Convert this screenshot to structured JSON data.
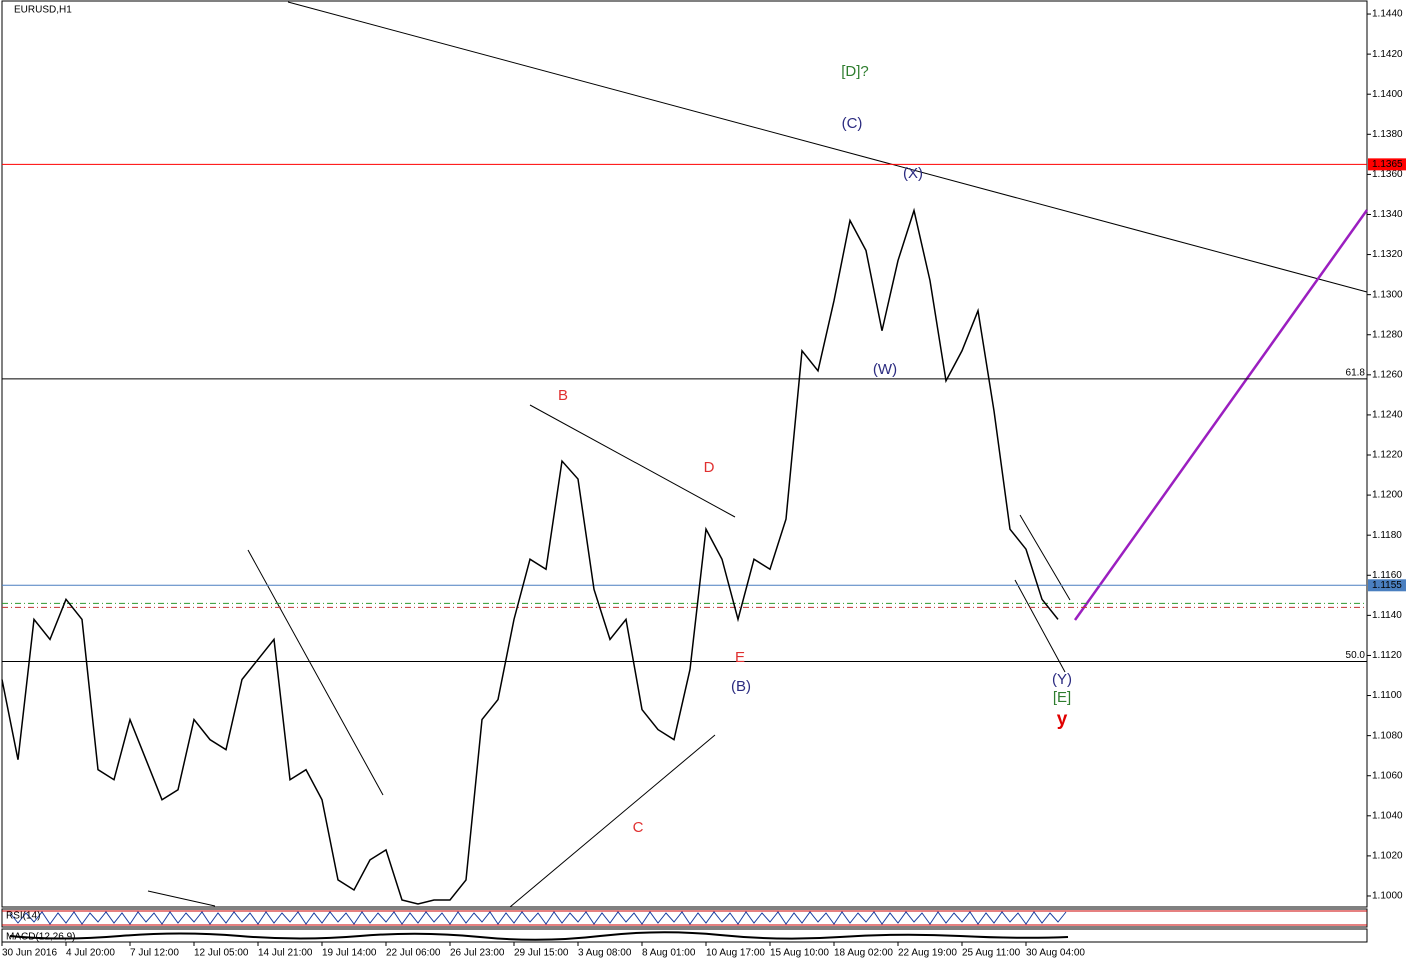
{
  "chart_data": {
    "type": "line",
    "title": "EURUSD,H1",
    "categories": [
      "30 Jun 2016",
      null,
      null,
      null,
      "4 Jul 20:00",
      null,
      null,
      null,
      "7 Jul 12:00",
      null,
      null,
      null,
      "12 Jul 05:00",
      null,
      null,
      null,
      "14 Jul 21:00",
      null,
      null,
      null,
      "19 Jul 14:00",
      null,
      null,
      null,
      "22 Jul 06:00",
      null,
      null,
      null,
      "26 Jul 23:00",
      null,
      null,
      null,
      "29 Jul 15:00",
      null,
      null,
      null,
      "3 Aug 08:00",
      null,
      null,
      null,
      "8 Aug 01:00",
      null,
      null,
      null,
      "10 Aug 17:00",
      null,
      null,
      null,
      "15 Aug 10:00",
      null,
      null,
      null,
      "18 Aug 02:00",
      null,
      null,
      null,
      "22 Aug 19:00",
      null,
      null,
      null,
      "25 Aug 11:00",
      null,
      null,
      null,
      "30 Aug 04:00",
      null,
      null
    ],
    "values": [
      1.1108,
      1.1068,
      1.1138,
      1.1128,
      1.1148,
      1.1138,
      1.1063,
      1.1058,
      1.1088,
      1.1068,
      1.1048,
      1.1053,
      1.1088,
      1.1078,
      1.1073,
      1.1108,
      1.1118,
      1.1128,
      1.1058,
      1.1063,
      1.1048,
      1.1008,
      1.1003,
      1.1018,
      1.1023,
      1.0998,
      1.0996,
      1.0998,
      1.0998,
      1.1008,
      1.1088,
      1.1098,
      1.1138,
      1.1168,
      1.1163,
      1.1217,
      1.1208,
      1.1153,
      1.1128,
      1.1138,
      1.1093,
      1.1083,
      1.1078,
      1.1113,
      1.1183,
      1.1168,
      1.1138,
      1.1168,
      1.1163,
      1.1188,
      1.1272,
      1.1262,
      1.1297,
      1.1337,
      1.1322,
      1.1282,
      1.1317,
      1.1342,
      1.1307,
      1.1257,
      1.1272,
      1.1292,
      1.1242,
      1.1183,
      1.1173,
      1.1148,
      1.1138
    ],
    "color": "#000000",
    "ylim": [
      1.09945,
      1.1447
    ],
    "yticks": [
      {
        "value": 1.1,
        "label": "1.1000"
      },
      {
        "value": 1.102,
        "label": "1.1020"
      },
      {
        "value": 1.104,
        "label": "1.1040"
      },
      {
        "value": 1.106,
        "label": "1.1060"
      },
      {
        "value": 1.108,
        "label": "1.1080"
      },
      {
        "value": 1.11,
        "label": "1.1100"
      },
      {
        "value": 1.112,
        "label": "1.1120"
      },
      {
        "value": 1.114,
        "label": "1.1140"
      },
      {
        "value": 1.116,
        "label": "1.1160"
      },
      {
        "value": 1.118,
        "label": "1.1180"
      },
      {
        "value": 1.12,
        "label": "1.1200"
      },
      {
        "value": 1.122,
        "label": "1.1220"
      },
      {
        "value": 1.124,
        "label": "1.1240"
      },
      {
        "value": 1.126,
        "label": "1.1260"
      },
      {
        "value": 1.128,
        "label": "1.1280"
      },
      {
        "value": 1.13,
        "label": "1.1300"
      },
      {
        "value": 1.132,
        "label": "1.1320"
      },
      {
        "value": 1.134,
        "label": "1.1340"
      },
      {
        "value": 1.136,
        "label": "1.1360"
      },
      {
        "value": 1.138,
        "label": "1.1380"
      },
      {
        "value": 1.14,
        "label": "1.1400"
      },
      {
        "value": 1.142,
        "label": "1.1420"
      },
      {
        "value": 1.144,
        "label": "1.1440"
      }
    ],
    "price_levels": [
      {
        "value": 1.1365,
        "color": "#ff0000"
      },
      {
        "value": 1.1155,
        "color": "#4a7fc0"
      }
    ],
    "fib_levels": [
      {
        "value": 1.1258,
        "label": "61.8"
      },
      {
        "value": 1.1117,
        "label": "50.0"
      }
    ],
    "dashed_levels": [
      {
        "value": 1.1146,
        "color": "#2e9a2e"
      },
      {
        "value": 1.1144,
        "color": "#c03030"
      }
    ],
    "annotations": [
      {
        "text": "[D]?",
        "color": "#2e7d2e"
      },
      {
        "text": "(C)",
        "color": "#2b2b80"
      },
      {
        "text": "(X)",
        "color": "#2b2b80"
      },
      {
        "text": "(W)",
        "color": "#2b2b80"
      },
      {
        "text": "B",
        "color": "#e03030"
      },
      {
        "text": "D",
        "color": "#e03030"
      },
      {
        "text": "E",
        "color": "#e03030"
      },
      {
        "text": "(B)",
        "color": "#2b2b80"
      },
      {
        "text": "C",
        "color": "#e03030"
      },
      {
        "text": "(Y)",
        "color": "#2b2b80"
      },
      {
        "text": "[E]",
        "color": "#2e7d2e"
      },
      {
        "text": "y",
        "color": "#e00000"
      }
    ],
    "indicators": [
      "RSI(14)",
      "MACD(12,26,9)"
    ]
  }
}
